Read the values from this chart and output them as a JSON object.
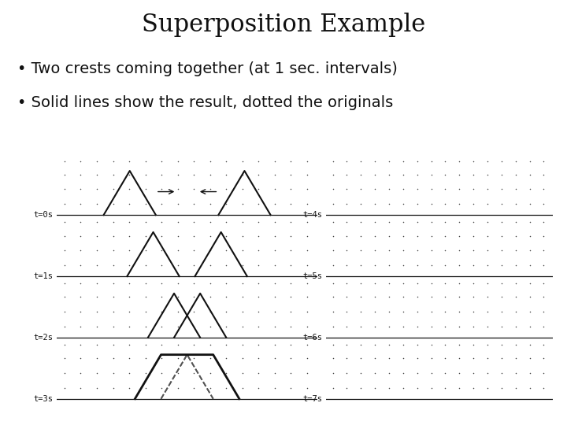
{
  "title": "Superposition Example",
  "bullet1": "Two crests coming together (at 1 sec. intervals)",
  "bullet2": "Solid lines show the result, dotted the originals",
  "title_fontsize": 22,
  "bullet_fontsize": 14,
  "bg_color": "#ffffff",
  "panel_bg": "#f0ece0",
  "dot_color": "#444444",
  "line_color": "#111111",
  "label_color": "#111111",
  "left_labels": [
    "t=0s",
    "t=1s",
    "t=2s",
    "t=3s"
  ],
  "right_labels": [
    "t=4s",
    "t=5s",
    "t=6s",
    "t=7s"
  ]
}
